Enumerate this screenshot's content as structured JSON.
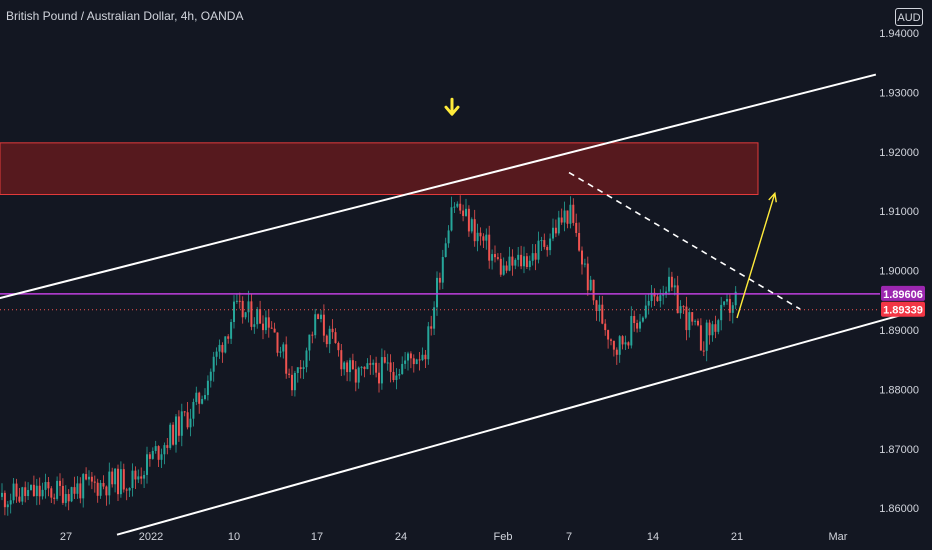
{
  "header": {
    "title": "British Pound / Australian Dollar, 4h, OANDA"
  },
  "price_axis": {
    "currency_button": "AUD",
    "ticks": [
      "1.94000",
      "1.93000",
      "1.92000",
      "1.91000",
      "1.90000",
      "1.89000",
      "1.88000",
      "1.87000",
      "1.86000"
    ],
    "markers": [
      {
        "label": "1.89606",
        "value": 1.89606,
        "color": "#9c27b0"
      },
      {
        "label": "1.89339",
        "value": 1.89339,
        "color": "#f23645"
      }
    ]
  },
  "time_axis": {
    "ticks": [
      "27",
      "2022",
      "10",
      "17",
      "24",
      "Feb",
      "7",
      "14",
      "21",
      "Mar"
    ]
  },
  "colors": {
    "background": "#131722",
    "up_candle": "#26a69a",
    "down_candle": "#ef5350",
    "channel": "#ffffff",
    "zone_fill": "#5c1a1e",
    "zone_border": "#e23a3a",
    "level_line": "#c040e0",
    "annotation": "#ffeb3b"
  },
  "chart_data": {
    "type": "candlestick",
    "title": "British Pound / Australian Dollar, 4h, OANDA",
    "ylim": [
      1.855,
      1.944
    ],
    "x_tick_labels": [
      "27",
      "2022",
      "10",
      "17",
      "24",
      "Feb",
      "7",
      "14",
      "21",
      "Mar"
    ],
    "y_tick_labels": [
      "1.94000",
      "1.93000",
      "1.92000",
      "1.91000",
      "1.90000",
      "1.89000",
      "1.88000",
      "1.87000",
      "1.86000"
    ],
    "approx_close_path": [
      {
        "date": "2021-12-22",
        "close": 1.8615
      },
      {
        "date": "2021-12-27",
        "close": 1.863
      },
      {
        "date": "2021-12-31",
        "close": 1.865
      },
      {
        "date": "2022-01-03",
        "close": 1.872
      },
      {
        "date": "2022-01-06",
        "close": 1.8775
      },
      {
        "date": "2022-01-10",
        "close": 1.893
      },
      {
        "date": "2022-01-13",
        "close": 1.892
      },
      {
        "date": "2022-01-15",
        "close": 1.881
      },
      {
        "date": "2022-01-17",
        "close": 1.892
      },
      {
        "date": "2022-01-20",
        "close": 1.882
      },
      {
        "date": "2022-01-24",
        "close": 1.884
      },
      {
        "date": "2022-01-26",
        "close": 1.887
      },
      {
        "date": "2022-01-28",
        "close": 1.912
      },
      {
        "date": "2022-02-01",
        "close": 1.9
      },
      {
        "date": "2022-02-04",
        "close": 1.903
      },
      {
        "date": "2022-02-07",
        "close": 1.91
      },
      {
        "date": "2022-02-09",
        "close": 1.895
      },
      {
        "date": "2022-02-11",
        "close": 1.887
      },
      {
        "date": "2022-02-15",
        "close": 1.898
      },
      {
        "date": "2022-02-18",
        "close": 1.888
      },
      {
        "date": "2022-02-21",
        "close": 1.8955
      }
    ],
    "annotations": {
      "current_price": 1.89339,
      "horizontal_level": 1.89606,
      "resistance_zone": [
        1.9128,
        1.9215
      ],
      "channel_upper": [
        {
          "date": "2021-12-11",
          "price": 1.8865
        },
        {
          "date": "2022-03-04",
          "price": 1.933
        }
      ],
      "channel_lower": [
        {
          "date": "2021-12-30",
          "price": 1.8555
        },
        {
          "date": "2022-03-06",
          "price": 1.8925
        }
      ],
      "dashed_trendline": [
        {
          "date": "2022-02-07",
          "price": 1.9165
        },
        {
          "date": "2022-02-26",
          "price": 1.8935
        }
      ],
      "projection_arrow": [
        {
          "date": "2022-02-21",
          "price": 1.892
        },
        {
          "date": "2022-02-24",
          "price": 1.913
        }
      ],
      "top_marker_arrow": {
        "date": "2022-01-28",
        "price": 1.927
      }
    }
  }
}
